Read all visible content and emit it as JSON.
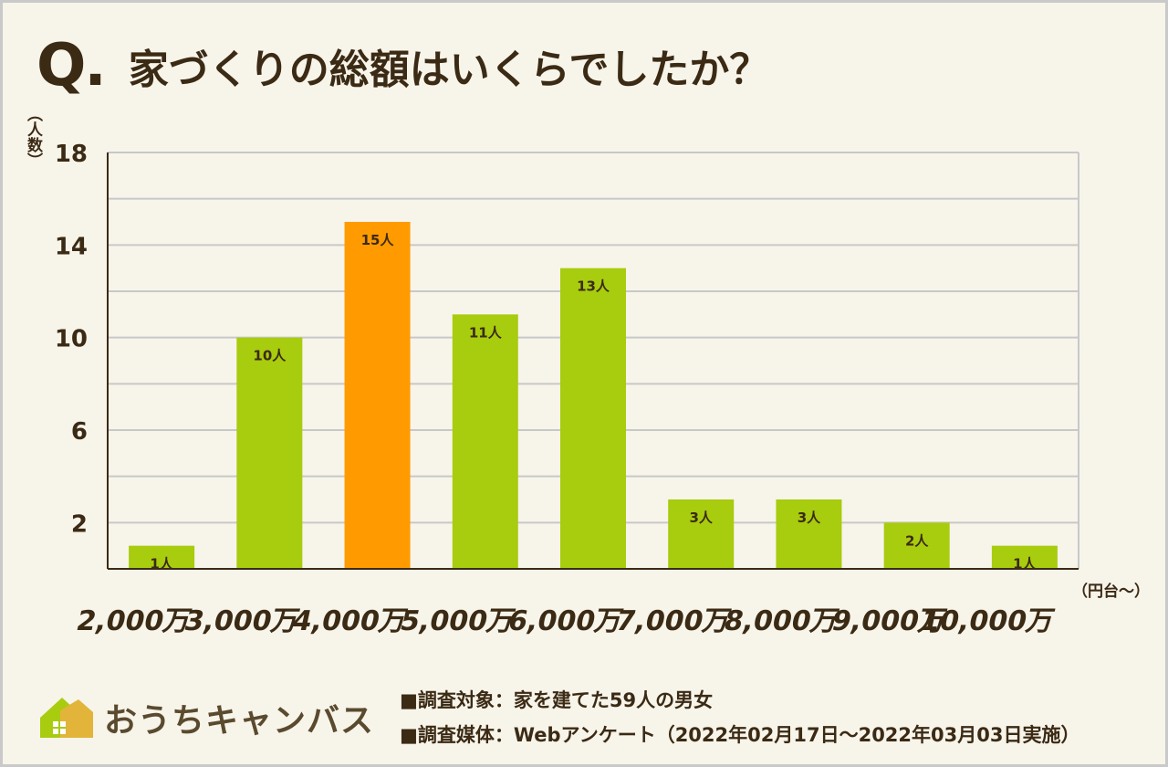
{
  "title": {
    "q_mark": "Q.",
    "text": "家づくりの総額はいくらでしたか？"
  },
  "colors": {
    "bar": "#a8cc0e",
    "highlight": "#ff9a00",
    "text": "#3b2a14",
    "grid": "#c8c8c8",
    "background": "#f7f4ea"
  },
  "chart_data": {
    "type": "bar",
    "categories": [
      "2,000万",
      "3,000万",
      "4,000万",
      "5,000万",
      "6,000万",
      "7,000万",
      "8,000万",
      "9,000万",
      "10,000万"
    ],
    "values": [
      1,
      10,
      15,
      11,
      13,
      3,
      3,
      2,
      1
    ],
    "data_labels": [
      "1人",
      "10人",
      "15人",
      "11人",
      "13人",
      "3人",
      "3人",
      "2人",
      "1人"
    ],
    "highlight_index": 2,
    "ylim": [
      0,
      18
    ],
    "yticks": [
      2,
      6,
      10,
      14,
      18
    ],
    "ylabel": "（人数）",
    "xlabel": "（円台〜）",
    "grid": true
  },
  "footer": {
    "logo_text": "おうちキャンバス",
    "note_target": "■調査対象：家を建てた59人の男女",
    "note_media": "■調査媒体：Webアンケート（2022年02月17日〜2022年03月03日実施）"
  }
}
